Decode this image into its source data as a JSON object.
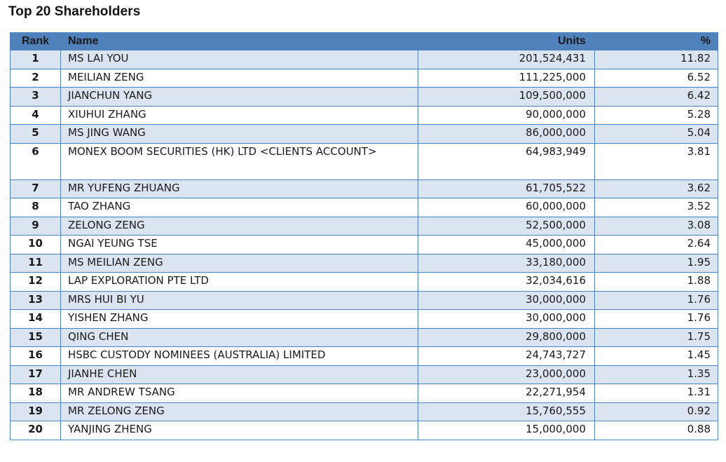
{
  "title": "Top 20 Shareholders",
  "columns": {
    "rank": "Rank",
    "name": "Name",
    "units": "Units",
    "pct": "%"
  },
  "rows": [
    {
      "rank": "1",
      "name": "MS LAI YOU",
      "units": "201,524,431",
      "pct": "11.82"
    },
    {
      "rank": "2",
      "name": "MEILIAN ZENG",
      "units": "111,225,000",
      "pct": "6.52"
    },
    {
      "rank": "3",
      "name": "JIANCHUN YANG",
      "units": "109,500,000",
      "pct": "6.42"
    },
    {
      "rank": "4",
      "name": "XIUHUI ZHANG",
      "units": "90,000,000",
      "pct": "5.28"
    },
    {
      "rank": "5",
      "name": "MS JING WANG",
      "units": "86,000,000",
      "pct": "5.04"
    },
    {
      "rank": "6",
      "name": "MONEX BOOM SECURITIES (HK) LTD <CLIENTS ACCOUNT>",
      "units": "64,983,949",
      "pct": "3.81"
    },
    {
      "rank": "7",
      "name": "MR YUFENG ZHUANG",
      "units": "61,705,522",
      "pct": "3.62"
    },
    {
      "rank": "8",
      "name": "TAO ZHANG",
      "units": "60,000,000",
      "pct": "3.52"
    },
    {
      "rank": "9",
      "name": "ZELONG ZENG",
      "units": "52,500,000",
      "pct": "3.08"
    },
    {
      "rank": "10",
      "name": "NGAI YEUNG TSE",
      "units": "45,000,000",
      "pct": "2.64"
    },
    {
      "rank": "11",
      "name": "MS MEILIAN ZENG",
      "units": "33,180,000",
      "pct": "1.95"
    },
    {
      "rank": "12",
      "name": "LAP EXPLORATION PTE LTD",
      "units": "32,034,616",
      "pct": "1.88"
    },
    {
      "rank": "13",
      "name": "MRS HUI BI YU",
      "units": "30,000,000",
      "pct": "1.76"
    },
    {
      "rank": "14",
      "name": "YISHEN ZHANG",
      "units": "30,000,000",
      "pct": "1.76"
    },
    {
      "rank": "15",
      "name": "QING CHEN",
      "units": "29,800,000",
      "pct": "1.75"
    },
    {
      "rank": "16",
      "name": "HSBC CUSTODY NOMINEES (AUSTRALIA) LIMITED",
      "units": "24,743,727",
      "pct": "1.45"
    },
    {
      "rank": "17",
      "name": "JIANHE CHEN",
      "units": "23,000,000",
      "pct": "1.35"
    },
    {
      "rank": "18",
      "name": "MR ANDREW TSANG",
      "units": "22,271,954",
      "pct": "1.31"
    },
    {
      "rank": "19",
      "name": "MR ZELONG ZENG",
      "units": "15,760,555",
      "pct": "0.92"
    },
    {
      "rank": "20",
      "name": "YANJING ZHENG",
      "units": "15,000,000",
      "pct": "0.88"
    }
  ],
  "colors": {
    "header_bg": "#4f81bd",
    "row_alt_bg": "#dbe5f1",
    "border": "#4f81bd"
  }
}
